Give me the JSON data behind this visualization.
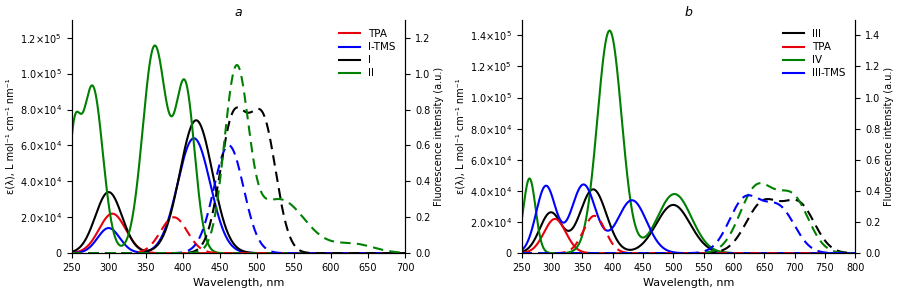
{
  "panel_a": {
    "title": "a",
    "xlabel": "Wavelength, nm",
    "ylabel_left": "ε(λ), L mol⁻¹ cm⁻¹ nm⁻¹",
    "ylabel_right": "Fluorescence intensity (a.u.)",
    "xlim": [
      250,
      700
    ],
    "ylim_left": [
      0,
      130000
    ],
    "ylim_right": [
      0,
      1.3
    ],
    "yticks_left": [
      0,
      20000,
      40000,
      60000,
      80000,
      100000,
      120000
    ],
    "yticks_right": [
      0.0,
      0.2,
      0.4,
      0.6,
      0.8,
      1.0,
      1.2
    ],
    "xticks": [
      250,
      300,
      350,
      400,
      450,
      500,
      550,
      600,
      650,
      700
    ],
    "abs_spectra": {
      "TPA": {
        "color": "#e8000d",
        "peaks": [
          {
            "c": 305,
            "a": 22000,
            "s": 18
          }
        ]
      },
      "I-TMS": {
        "color": "#0000ff",
        "peaks": [
          {
            "c": 300,
            "a": 14000,
            "s": 15
          },
          {
            "c": 415,
            "a": 64000,
            "s": 22
          }
        ]
      },
      "I": {
        "color": "#000000",
        "peaks": [
          {
            "c": 300,
            "a": 34000,
            "s": 18
          },
          {
            "c": 418,
            "a": 74000,
            "s": 22
          }
        ]
      },
      "II": {
        "color": "#008000",
        "peaks": [
          {
            "c": 253,
            "a": 55000,
            "s": 8
          },
          {
            "c": 278,
            "a": 93000,
            "s": 14
          },
          {
            "c": 362,
            "a": 115000,
            "s": 16
          },
          {
            "c": 403,
            "a": 92000,
            "s": 13
          }
        ]
      }
    },
    "flu_spectra": {
      "TPA": {
        "color": "#e8000d",
        "peaks": [
          {
            "c": 388,
            "a": 0.2,
            "s": 18
          }
        ]
      },
      "I-TMS": {
        "color": "#0000ff",
        "peaks": [
          {
            "c": 462,
            "a": 0.6,
            "s": 20
          }
        ]
      },
      "I": {
        "color": "#000000",
        "peaks": [
          {
            "c": 468,
            "a": 0.73,
            "s": 18
          },
          {
            "c": 508,
            "a": 0.72,
            "s": 18
          }
        ]
      },
      "II": {
        "color": "#008000",
        "peaks": [
          {
            "c": 472,
            "a": 0.97,
            "s": 16
          },
          {
            "c": 530,
            "a": 0.3,
            "s": 35
          },
          {
            "c": 630,
            "a": 0.05,
            "s": 28
          }
        ]
      }
    },
    "legend_order": [
      "TPA",
      "I-TMS",
      "I",
      "II"
    ]
  },
  "panel_b": {
    "title": "b",
    "xlabel": "Wavelength, nm",
    "ylabel_left": "ε(λ), L mol⁻¹ cm⁻¹ nm⁻¹",
    "ylabel_right": "Fluorescence intensity (a.u.)",
    "xlim": [
      250,
      800
    ],
    "ylim_left": [
      0,
      150000
    ],
    "ylim_right": [
      0,
      1.5
    ],
    "yticks_left": [
      0,
      20000,
      40000,
      60000,
      80000,
      100000,
      120000,
      140000
    ],
    "yticks_right": [
      0.0,
      0.2,
      0.4,
      0.6,
      0.8,
      1.0,
      1.2,
      1.4
    ],
    "xticks": [
      250,
      300,
      350,
      400,
      450,
      500,
      550,
      600,
      650,
      700,
      750,
      800
    ],
    "abs_spectra": {
      "III": {
        "color": "#000000",
        "peaks": [
          {
            "c": 298,
            "a": 26000,
            "s": 18
          },
          {
            "c": 368,
            "a": 41000,
            "s": 22
          },
          {
            "c": 500,
            "a": 31000,
            "s": 28
          }
        ]
      },
      "TPA": {
        "color": "#e8000d",
        "peaks": [
          {
            "c": 305,
            "a": 22000,
            "s": 18
          }
        ]
      },
      "IV": {
        "color": "#008000",
        "peaks": [
          {
            "c": 263,
            "a": 48000,
            "s": 10
          },
          {
            "c": 395,
            "a": 143000,
            "s": 20
          },
          {
            "c": 502,
            "a": 38000,
            "s": 28
          }
        ]
      },
      "III-TMS": {
        "color": "#0000ff",
        "peaks": [
          {
            "c": 290,
            "a": 43000,
            "s": 16
          },
          {
            "c": 352,
            "a": 44000,
            "s": 20
          },
          {
            "c": 432,
            "a": 34000,
            "s": 24
          }
        ]
      }
    },
    "flu_spectra": {
      "III": {
        "color": "#000000",
        "peaks": [
          {
            "c": 648,
            "a": 0.32,
            "s": 28
          },
          {
            "c": 708,
            "a": 0.3,
            "s": 26
          }
        ]
      },
      "TPA": {
        "color": "#e8000d",
        "peaks": [
          {
            "c": 370,
            "a": 0.24,
            "s": 18
          }
        ]
      },
      "IV": {
        "color": "#008000",
        "peaks": [
          {
            "c": 638,
            "a": 0.42,
            "s": 28
          },
          {
            "c": 698,
            "a": 0.34,
            "s": 26
          }
        ]
      },
      "III-TMS": {
        "color": "#0000ff",
        "peaks": [
          {
            "c": 618,
            "a": 0.34,
            "s": 26
          },
          {
            "c": 675,
            "a": 0.28,
            "s": 26
          }
        ]
      }
    },
    "legend_order": [
      "III",
      "TPA",
      "IV",
      "III-TMS"
    ]
  },
  "fig_width": 9.0,
  "fig_height": 2.94,
  "dpi": 100
}
